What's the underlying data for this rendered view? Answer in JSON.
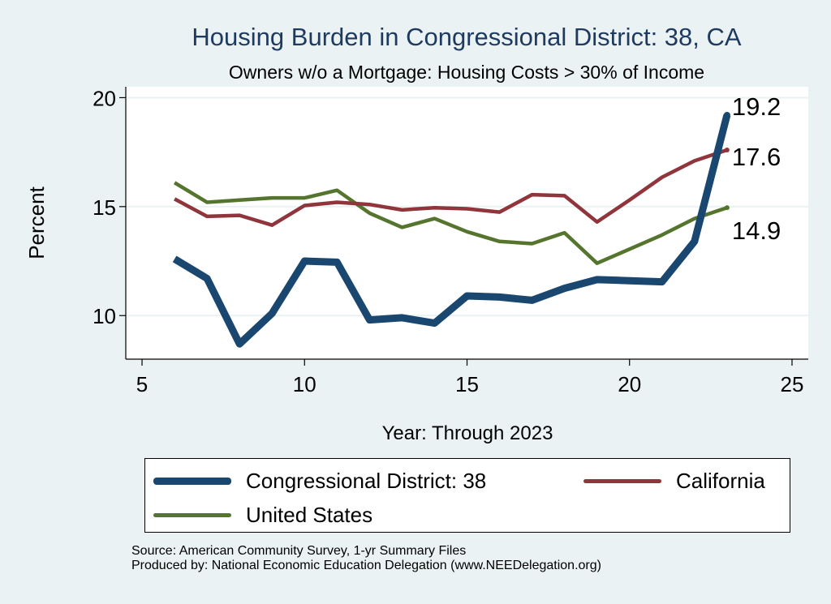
{
  "title": "Housing Burden in Congressional District:  38, CA",
  "subtitle": "Owners w/o a Mortgage: Housing Costs > 30% of Income",
  "footer": {
    "source": "Source: American Community Survey, 1-yr Summary Files",
    "produced": "Produced by: National Economic Education Delegation (www.NEEDelegation.org)"
  },
  "colors": {
    "district": "#1a476f",
    "state": "#90353b",
    "national": "#55752f",
    "background": "#eaf2f3",
    "plot": "#ffffff"
  },
  "chart_data": {
    "type": "line",
    "xlabel": "Year: Through 2023",
    "ylabel": "Percent",
    "xlim": [
      4.5,
      25.5
    ],
    "ylim": [
      8.0,
      20.5
    ],
    "xticks": [
      5,
      10,
      15,
      20,
      25
    ],
    "yticks": [
      10,
      15,
      20
    ],
    "grid": "horizontal",
    "legend_position": "bottom",
    "series": [
      {
        "name": "Congressional District:  38",
        "color": "#1a476f",
        "x": [
          6,
          7,
          8,
          9,
          10,
          11,
          12,
          13,
          14,
          15,
          16,
          17,
          18,
          19,
          20,
          21,
          22,
          23
        ],
        "y": [
          12.6,
          11.7,
          8.7,
          10.1,
          12.5,
          12.45,
          9.8,
          9.9,
          9.65,
          10.9,
          10.85,
          10.7,
          11.25,
          11.65,
          11.6,
          11.55,
          13.4,
          19.2
        ],
        "end_label": "19.2"
      },
      {
        "name": "California",
        "color": "#90353b",
        "x": [
          6,
          7,
          8,
          9,
          10,
          11,
          12,
          13,
          14,
          15,
          16,
          17,
          18,
          19,
          20,
          21,
          22,
          23
        ],
        "y": [
          15.35,
          14.55,
          14.6,
          14.15,
          15.05,
          15.2,
          15.1,
          14.85,
          14.95,
          14.9,
          14.75,
          15.55,
          15.5,
          14.3,
          15.3,
          16.35,
          17.1,
          17.6
        ],
        "end_label": "17.6"
      },
      {
        "name": "United States",
        "color": "#55752f",
        "x": [
          6,
          7,
          8,
          9,
          10,
          11,
          12,
          13,
          14,
          15,
          16,
          17,
          18,
          19,
          20,
          21,
          22,
          23
        ],
        "y": [
          16.1,
          15.2,
          15.3,
          15.4,
          15.4,
          15.75,
          14.7,
          14.05,
          14.45,
          13.85,
          13.4,
          13.3,
          13.8,
          12.4,
          13.05,
          13.7,
          14.45,
          14.95
        ],
        "end_label": "14.9"
      }
    ]
  }
}
